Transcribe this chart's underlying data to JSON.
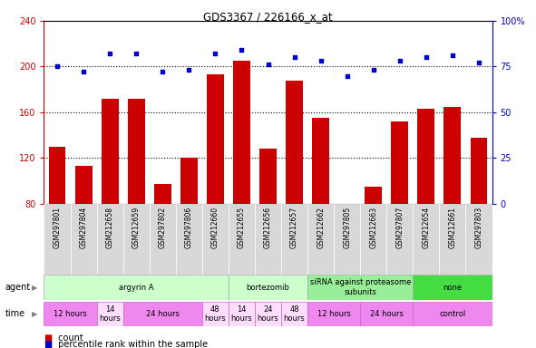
{
  "title": "GDS3367 / 226166_x_at",
  "samples": [
    "GSM297801",
    "GSM297804",
    "GSM212658",
    "GSM212659",
    "GSM297802",
    "GSM297806",
    "GSM212660",
    "GSM212655",
    "GSM212656",
    "GSM212657",
    "GSM212662",
    "GSM297805",
    "GSM212663",
    "GSM297807",
    "GSM212654",
    "GSM212661",
    "GSM297803"
  ],
  "counts": [
    130,
    113,
    172,
    172,
    97,
    120,
    193,
    205,
    128,
    188,
    155,
    80,
    95,
    152,
    163,
    165,
    138
  ],
  "percentiles": [
    75,
    72,
    82,
    82,
    72,
    73,
    82,
    84,
    76,
    80,
    78,
    70,
    73,
    78,
    80,
    81,
    77
  ],
  "ylim_left": [
    80,
    240
  ],
  "ylim_right": [
    0,
    100
  ],
  "yticks_left": [
    80,
    120,
    160,
    200,
    240
  ],
  "yticks_right": [
    0,
    25,
    50,
    75,
    100
  ],
  "bar_color": "#cc0000",
  "dot_color": "#0000cc",
  "axis_color_left": "#cc0000",
  "axis_color_right": "#0000cc",
  "plot_bg": "#ffffff",
  "sample_bg": "#d8d8d8",
  "agent_groups": [
    {
      "label": "argyrin A",
      "start": 0,
      "end": 7,
      "color": "#ccffcc"
    },
    {
      "label": "bortezomib",
      "start": 7,
      "end": 10,
      "color": "#ccffcc"
    },
    {
      "label": "siRNA against proteasome\nsubunits",
      "start": 10,
      "end": 14,
      "color": "#99ee99"
    },
    {
      "label": "none",
      "start": 14,
      "end": 17,
      "color": "#44dd44"
    }
  ],
  "time_groups": [
    {
      "label": "12 hours",
      "start": 0,
      "end": 2,
      "color": "#ee88ee"
    },
    {
      "label": "14\nhours",
      "start": 2,
      "end": 3,
      "color": "#ffddff"
    },
    {
      "label": "24 hours",
      "start": 3,
      "end": 6,
      "color": "#ee88ee"
    },
    {
      "label": "48\nhours",
      "start": 6,
      "end": 7,
      "color": "#ffddff"
    },
    {
      "label": "14\nhours",
      "start": 7,
      "end": 8,
      "color": "#ffddff"
    },
    {
      "label": "24\nhours",
      "start": 8,
      "end": 9,
      "color": "#ffddff"
    },
    {
      "label": "48\nhours",
      "start": 9,
      "end": 10,
      "color": "#ffddff"
    },
    {
      "label": "12 hours",
      "start": 10,
      "end": 12,
      "color": "#ee88ee"
    },
    {
      "label": "24 hours",
      "start": 12,
      "end": 14,
      "color": "#ee88ee"
    },
    {
      "label": "control",
      "start": 14,
      "end": 17,
      "color": "#ee88ee"
    }
  ]
}
